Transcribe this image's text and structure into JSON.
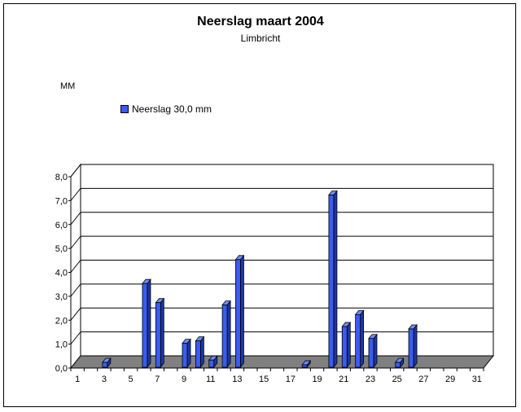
{
  "chart_data": {
    "type": "bar",
    "title": "Neerslag maart 2004",
    "subtitle": "Limbricht",
    "ylabel": "MM",
    "xlabel": "",
    "ylim": [
      0,
      8
    ],
    "yticks": [
      "0,0",
      "1,0",
      "2,0",
      "3,0",
      "4,0",
      "5,0",
      "6,0",
      "7,0",
      "8,0"
    ],
    "xticks": [
      "1",
      "3",
      "5",
      "7",
      "9",
      "11",
      "13",
      "15",
      "17",
      "19",
      "21",
      "23",
      "25",
      "27",
      "29",
      "31"
    ],
    "legend": "top-left",
    "grid": true,
    "colors": {
      "bar": "#3a5cf0",
      "bar_top": "#6f8cff",
      "bar_side": "#1e36a8",
      "floor": "#808080"
    },
    "categories": [
      1,
      2,
      3,
      4,
      5,
      6,
      7,
      8,
      9,
      10,
      11,
      12,
      13,
      14,
      15,
      16,
      17,
      18,
      19,
      20,
      21,
      22,
      23,
      24,
      25,
      26,
      27,
      28,
      29,
      30,
      31
    ],
    "series": [
      {
        "name": "Neerslag 30,0 mm",
        "values": [
          0,
          0,
          0.2,
          0,
          0,
          3.5,
          2.7,
          0,
          1.0,
          1.1,
          0.3,
          2.6,
          4.5,
          0,
          0,
          0,
          0,
          0.1,
          0,
          7.2,
          1.7,
          2.2,
          1.2,
          0,
          0.2,
          1.6,
          0,
          0,
          0,
          0,
          0
        ]
      }
    ]
  }
}
